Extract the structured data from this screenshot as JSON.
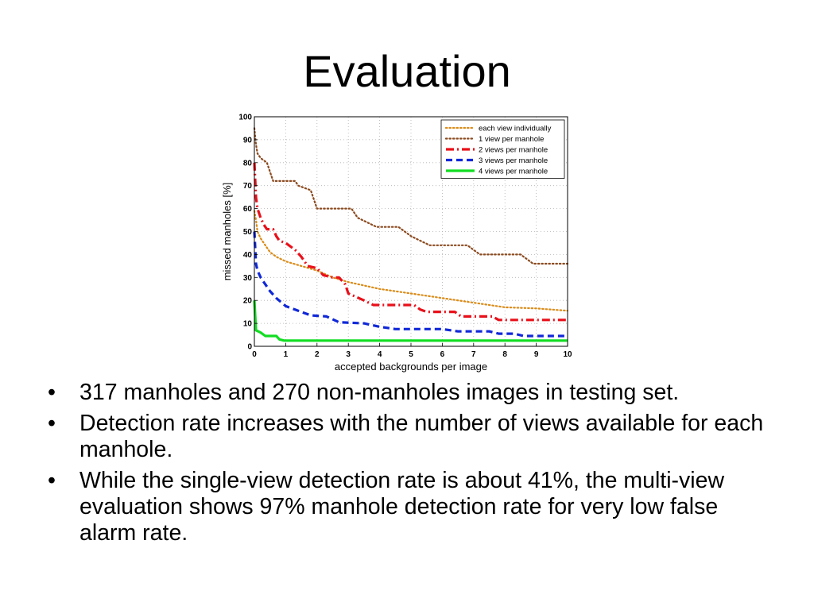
{
  "slide": {
    "title": "Evaluation",
    "bullets": [
      "317 manholes and 270 non-manholes images in testing set.",
      "Detection rate increases with the number of views available for each manhole.",
      "While the single-view detection rate is about 41%, the multi-view evaluation shows 97% manhole detection rate for very low false alarm rate."
    ]
  },
  "chart_data": {
    "type": "line",
    "title": "",
    "xlabel": "accepted backgrounds per image",
    "ylabel": "missed manholes [%]",
    "xlim": [
      0,
      10
    ],
    "ylim": [
      0,
      100
    ],
    "xticks": [
      0,
      1,
      2,
      3,
      4,
      5,
      6,
      7,
      8,
      9,
      10
    ],
    "yticks": [
      0,
      10,
      20,
      30,
      40,
      50,
      60,
      70,
      80,
      90,
      100
    ],
    "grid": true,
    "legend_position": "top-right",
    "series": [
      {
        "name": "each view individually",
        "color": "#d98c1a",
        "style": "dotted",
        "points": [
          [
            0,
            59
          ],
          [
            0.05,
            55
          ],
          [
            0.1,
            50
          ],
          [
            0.2,
            47
          ],
          [
            0.3,
            45
          ],
          [
            0.5,
            41
          ],
          [
            0.7,
            39
          ],
          [
            1,
            37
          ],
          [
            1.5,
            35
          ],
          [
            2,
            33
          ],
          [
            2.5,
            30
          ],
          [
            3,
            28
          ],
          [
            4,
            25
          ],
          [
            5,
            23
          ],
          [
            6,
            21
          ],
          [
            7,
            19
          ],
          [
            8,
            17
          ],
          [
            9,
            16.5
          ],
          [
            10,
            15.5
          ]
        ]
      },
      {
        "name": "1 view per manhole",
        "color": "#8b4a1f",
        "style": "dotted",
        "points": [
          [
            0,
            95
          ],
          [
            0.05,
            88
          ],
          [
            0.1,
            84
          ],
          [
            0.2,
            82
          ],
          [
            0.4,
            80
          ],
          [
            0.5,
            76
          ],
          [
            0.6,
            72
          ],
          [
            1.3,
            72
          ],
          [
            1.4,
            70
          ],
          [
            1.8,
            68
          ],
          [
            2,
            60
          ],
          [
            3.1,
            60
          ],
          [
            3.3,
            56
          ],
          [
            3.9,
            52
          ],
          [
            4.6,
            52
          ],
          [
            5,
            48
          ],
          [
            5.3,
            46
          ],
          [
            5.6,
            44
          ],
          [
            6.8,
            44
          ],
          [
            7.2,
            40
          ],
          [
            8.5,
            40
          ],
          [
            8.9,
            36
          ],
          [
            10,
            36
          ]
        ]
      },
      {
        "name": "2 views per manhole",
        "color": "#e8101a",
        "style": "dashdot",
        "points": [
          [
            0,
            80
          ],
          [
            0.05,
            65
          ],
          [
            0.1,
            60
          ],
          [
            0.2,
            56
          ],
          [
            0.3,
            53
          ],
          [
            0.4,
            51
          ],
          [
            0.6,
            51
          ],
          [
            0.7,
            48
          ],
          [
            0.8,
            46
          ],
          [
            1,
            45
          ],
          [
            1.3,
            42
          ],
          [
            1.5,
            39
          ],
          [
            1.7,
            35
          ],
          [
            2,
            34
          ],
          [
            2.2,
            31
          ],
          [
            2.5,
            30
          ],
          [
            2.7,
            30
          ],
          [
            2.9,
            27
          ],
          [
            3,
            23
          ],
          [
            3.5,
            20
          ],
          [
            3.8,
            18
          ],
          [
            5.1,
            18
          ],
          [
            5.3,
            16
          ],
          [
            5.5,
            15
          ],
          [
            6.4,
            15
          ],
          [
            6.6,
            13
          ],
          [
            7.6,
            13
          ],
          [
            7.8,
            11.5
          ],
          [
            10,
            11.5
          ]
        ]
      },
      {
        "name": "3 views per manhole",
        "color": "#1028d8",
        "style": "dashed",
        "points": [
          [
            0,
            50
          ],
          [
            0.05,
            36
          ],
          [
            0.1,
            33
          ],
          [
            0.2,
            30
          ],
          [
            0.3,
            28
          ],
          [
            0.5,
            24
          ],
          [
            0.7,
            21
          ],
          [
            1,
            17.5
          ],
          [
            1.3,
            16
          ],
          [
            1.8,
            13.5
          ],
          [
            2.3,
            13
          ],
          [
            2.7,
            10.5
          ],
          [
            3.5,
            10
          ],
          [
            4,
            8.5
          ],
          [
            4.5,
            7.5
          ],
          [
            6,
            7.5
          ],
          [
            6.5,
            6.5
          ],
          [
            7.5,
            6.5
          ],
          [
            7.8,
            5.5
          ],
          [
            8.3,
            5.5
          ],
          [
            8.6,
            4.5
          ],
          [
            10,
            4.5
          ]
        ]
      },
      {
        "name": "4 views per manhole",
        "color": "#11dd22",
        "style": "solid",
        "points": [
          [
            0,
            20
          ],
          [
            0.05,
            7
          ],
          [
            0.2,
            6
          ],
          [
            0.35,
            4.5
          ],
          [
            0.7,
            4.5
          ],
          [
            0.8,
            3
          ],
          [
            0.95,
            2.5
          ],
          [
            10,
            2.5
          ]
        ]
      }
    ]
  }
}
